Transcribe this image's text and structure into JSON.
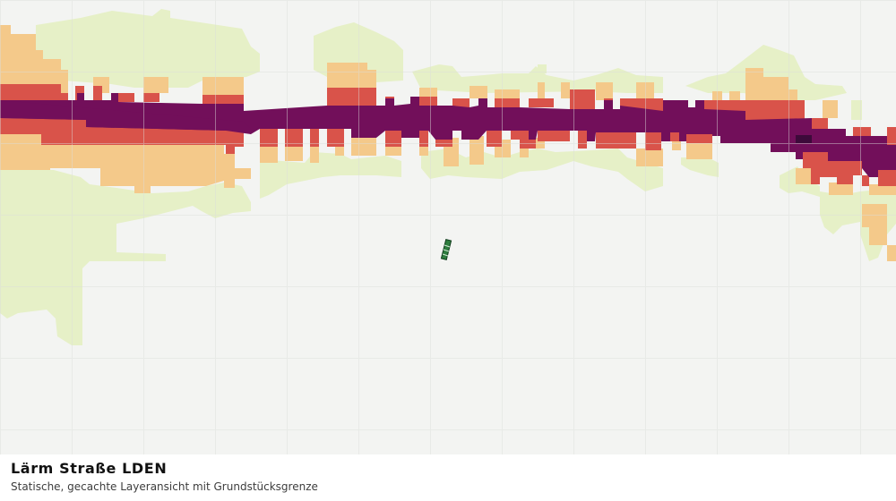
{
  "map": {
    "title": "Lärm Straße LDEN",
    "subtitle": "Statische, gecachte Layeransicht mit Grundstücksgrenze",
    "background": "#f3f4f2",
    "grid_color": "#dcdedb",
    "noise_class_colors": {
      "class_1": "#e6f0c7",
      "class_2": "#f4c98a",
      "class_3": "#d9534a",
      "class_4": "#720f5a",
      "class_5": "#3d0a3a"
    },
    "parcel_marker": {
      "fill": "#2e7d3e",
      "stroke": "#103b1c",
      "icon": "parcel-boundary"
    }
  }
}
